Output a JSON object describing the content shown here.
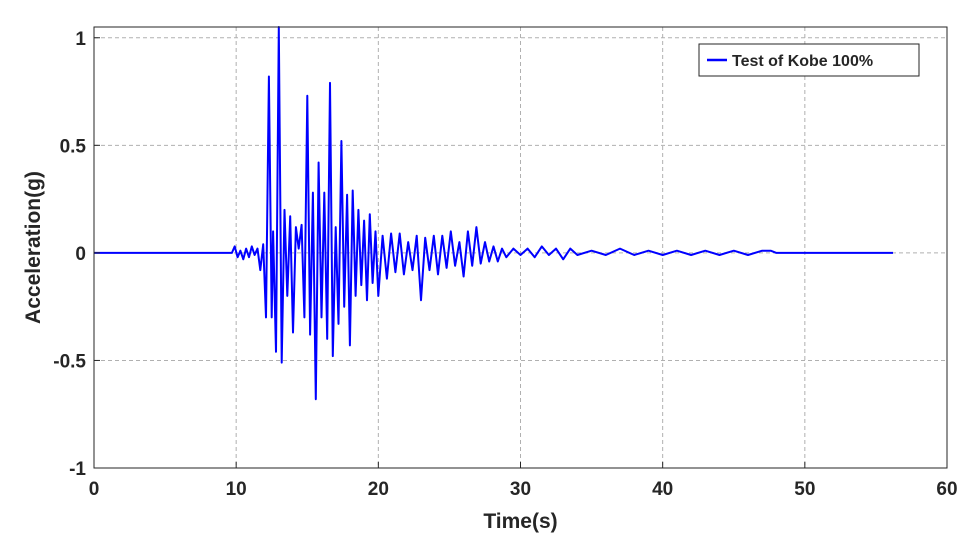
{
  "chart_data": {
    "type": "line",
    "title": "",
    "xlabel": "Time(s)",
    "ylabel": "Acceleration(g)",
    "xlim": [
      0,
      60
    ],
    "ylim": [
      -1,
      1.05
    ],
    "xticks": [
      0,
      10,
      20,
      30,
      40,
      50,
      60
    ],
    "xtick_labels": [
      "0",
      "10",
      "20",
      "30",
      "40",
      "50",
      "60"
    ],
    "yticks": [
      -1,
      -0.5,
      0,
      0.5,
      1
    ],
    "ytick_labels": [
      "-1",
      "-0.5",
      "0",
      "0.5",
      "1"
    ],
    "grid": true,
    "legend_position": "top-right",
    "series": [
      {
        "name": "Test of Kobe 100%",
        "color": "#0000ff",
        "x": [
          0,
          9.7,
          9.9,
          10.1,
          10.3,
          10.5,
          10.7,
          10.9,
          11.1,
          11.3,
          11.5,
          11.7,
          11.9,
          12.1,
          12.3,
          12.5,
          12.6,
          12.8,
          13.0,
          13.2,
          13.4,
          13.6,
          13.8,
          14.0,
          14.2,
          14.4,
          14.6,
          14.8,
          15.0,
          15.2,
          15.4,
          15.6,
          15.8,
          16.0,
          16.2,
          16.4,
          16.6,
          16.8,
          17.0,
          17.2,
          17.4,
          17.6,
          17.8,
          18.0,
          18.2,
          18.4,
          18.6,
          18.8,
          19.0,
          19.2,
          19.4,
          19.6,
          19.8,
          20.0,
          20.3,
          20.6,
          20.9,
          21.2,
          21.5,
          21.8,
          22.1,
          22.4,
          22.7,
          23.0,
          23.3,
          23.6,
          23.9,
          24.2,
          24.5,
          24.8,
          25.1,
          25.4,
          25.7,
          26.0,
          26.3,
          26.6,
          26.9,
          27.2,
          27.5,
          27.8,
          28.1,
          28.4,
          28.7,
          29.0,
          29.5,
          30.0,
          30.5,
          31.0,
          31.5,
          32.0,
          32.5,
          33.0,
          33.5,
          34.0,
          35.0,
          36.0,
          37.0,
          38.0,
          39.0,
          40.0,
          41.0,
          42.0,
          43.0,
          44.0,
          45.0,
          46.0,
          47.0,
          47.6,
          48.0,
          56.2
        ],
        "y": [
          0,
          0,
          0.03,
          -0.02,
          0.01,
          -0.03,
          0.02,
          -0.02,
          0.03,
          -0.01,
          0.02,
          -0.08,
          0.04,
          -0.3,
          0.82,
          -0.3,
          0.1,
          -0.46,
          1.05,
          -0.51,
          0.2,
          -0.2,
          0.17,
          -0.37,
          0.12,
          0.02,
          0.13,
          -0.3,
          0.73,
          -0.38,
          0.28,
          -0.68,
          0.42,
          -0.3,
          0.28,
          -0.4,
          0.79,
          -0.48,
          0.12,
          -0.33,
          0.52,
          -0.25,
          0.27,
          -0.43,
          0.29,
          -0.2,
          0.2,
          -0.15,
          0.15,
          -0.22,
          0.18,
          -0.14,
          0.1,
          -0.2,
          0.08,
          -0.12,
          0.09,
          -0.09,
          0.09,
          -0.1,
          0.05,
          -0.08,
          0.08,
          -0.22,
          0.07,
          -0.08,
          0.08,
          -0.1,
          0.08,
          -0.07,
          0.1,
          -0.06,
          0.05,
          -0.11,
          0.1,
          -0.06,
          0.12,
          -0.05,
          0.05,
          -0.04,
          0.03,
          -0.04,
          0.02,
          -0.02,
          0.02,
          -0.01,
          0.02,
          -0.02,
          0.03,
          -0.01,
          0.02,
          -0.03,
          0.02,
          -0.01,
          0.01,
          -0.01,
          0.02,
          -0.01,
          0.01,
          -0.01,
          0.01,
          -0.01,
          0.01,
          -0.01,
          0.01,
          -0.01,
          0.01,
          0.01,
          0,
          0
        ]
      }
    ]
  }
}
